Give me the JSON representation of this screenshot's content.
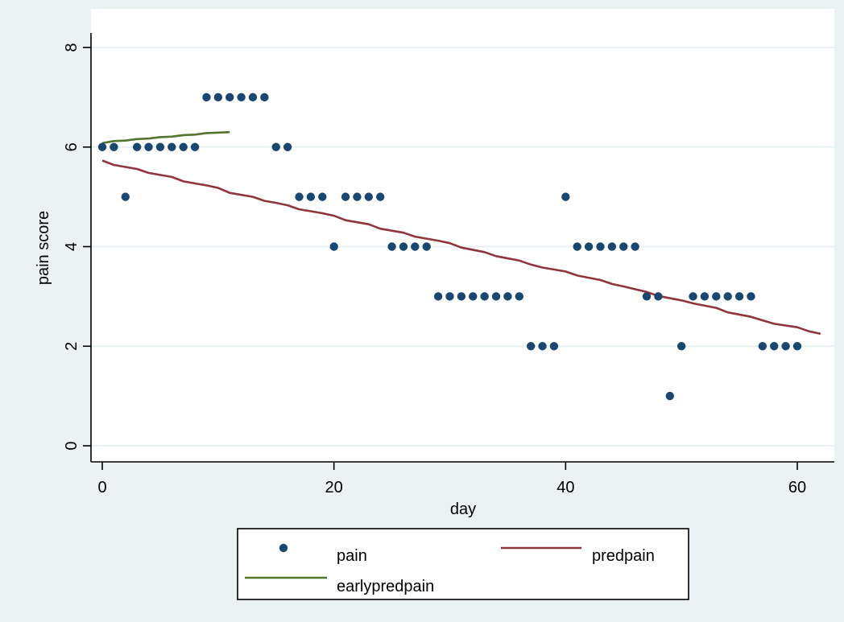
{
  "chart_data": {
    "type": "scatter",
    "xlabel": "day",
    "ylabel": "pain score",
    "xlim": [
      -1.5,
      63.5
    ],
    "ylim": [
      -0.3,
      8.3
    ],
    "x_ticks": [
      0,
      20,
      40,
      60
    ],
    "y_ticks": [
      0,
      2,
      4,
      6,
      8
    ],
    "grid": "horizontal",
    "legend_placement": "bottom",
    "colors": {
      "outer_background": "#eaf2f3",
      "plot_background": "#ffffff",
      "grid": "#eaf2f3",
      "pain": "#1a476f",
      "predpain": "#90353b",
      "earlypredpain": "#55752f"
    },
    "series": [
      {
        "name": "pain",
        "mark": "point",
        "points": [
          [
            0,
            6
          ],
          [
            1,
            6
          ],
          [
            2,
            5
          ],
          [
            3,
            6
          ],
          [
            4,
            6
          ],
          [
            5,
            6
          ],
          [
            6,
            6
          ],
          [
            7,
            6
          ],
          [
            8,
            6
          ],
          [
            9,
            7
          ],
          [
            10,
            7
          ],
          [
            11,
            7
          ],
          [
            12,
            7
          ],
          [
            13,
            7
          ],
          [
            14,
            7
          ],
          [
            15,
            6
          ],
          [
            16,
            6
          ],
          [
            17,
            5
          ],
          [
            18,
            5
          ],
          [
            19,
            5
          ],
          [
            20,
            4
          ],
          [
            21,
            5
          ],
          [
            22,
            5
          ],
          [
            23,
            5
          ],
          [
            24,
            5
          ],
          [
            25,
            4
          ],
          [
            26,
            4
          ],
          [
            27,
            4
          ],
          [
            28,
            4
          ],
          [
            29,
            3
          ],
          [
            30,
            3
          ],
          [
            31,
            3
          ],
          [
            32,
            3
          ],
          [
            33,
            3
          ],
          [
            34,
            3
          ],
          [
            35,
            3
          ],
          [
            36,
            3
          ],
          [
            37,
            2
          ],
          [
            38,
            2
          ],
          [
            39,
            2
          ],
          [
            40,
            5
          ],
          [
            41,
            4
          ],
          [
            42,
            4
          ],
          [
            43,
            4
          ],
          [
            44,
            4
          ],
          [
            45,
            4
          ],
          [
            46,
            4
          ],
          [
            47,
            3
          ],
          [
            48,
            3
          ],
          [
            49,
            1
          ],
          [
            50,
            2
          ],
          [
            51,
            3
          ],
          [
            52,
            3
          ],
          [
            53,
            3
          ],
          [
            54,
            3
          ],
          [
            55,
            3
          ],
          [
            56,
            3
          ],
          [
            57,
            2
          ],
          [
            58,
            2
          ],
          [
            59,
            2
          ],
          [
            60,
            2
          ]
        ]
      },
      {
        "name": "predpain",
        "mark": "line",
        "points": [
          [
            0,
            5.73
          ],
          [
            1,
            5.64
          ],
          [
            3,
            5.56
          ],
          [
            4,
            5.48
          ],
          [
            6,
            5.4
          ],
          [
            7,
            5.31
          ],
          [
            9,
            5.23
          ],
          [
            10,
            5.18
          ],
          [
            11,
            5.08
          ],
          [
            13,
            5.0
          ],
          [
            14,
            4.92
          ],
          [
            15,
            4.88
          ],
          [
            16,
            4.83
          ],
          [
            17,
            4.75
          ],
          [
            19,
            4.67
          ],
          [
            20,
            4.62
          ],
          [
            21,
            4.53
          ],
          [
            23,
            4.45
          ],
          [
            24,
            4.36
          ],
          [
            26,
            4.28
          ],
          [
            27,
            4.2
          ],
          [
            29,
            4.12
          ],
          [
            30,
            4.07
          ],
          [
            31,
            3.98
          ],
          [
            33,
            3.89
          ],
          [
            34,
            3.81
          ],
          [
            36,
            3.72
          ],
          [
            37,
            3.64
          ],
          [
            38,
            3.58
          ],
          [
            40,
            3.5
          ],
          [
            41,
            3.42
          ],
          [
            43,
            3.33
          ],
          [
            44,
            3.25
          ],
          [
            45,
            3.2
          ],
          [
            47,
            3.09
          ],
          [
            48,
            3.01
          ],
          [
            50,
            2.92
          ],
          [
            51,
            2.86
          ],
          [
            53,
            2.77
          ],
          [
            54,
            2.68
          ],
          [
            56,
            2.59
          ],
          [
            57,
            2.52
          ],
          [
            58,
            2.45
          ],
          [
            60,
            2.38
          ],
          [
            61,
            2.3
          ],
          [
            62,
            2.25
          ]
        ]
      },
      {
        "name": "earlypredpain",
        "mark": "line",
        "points": [
          [
            0,
            6.08
          ],
          [
            1,
            6.12
          ],
          [
            2,
            6.13
          ],
          [
            3,
            6.16
          ],
          [
            4,
            6.17
          ],
          [
            5,
            6.2
          ],
          [
            6,
            6.21
          ],
          [
            7,
            6.24
          ],
          [
            8,
            6.25
          ],
          [
            9,
            6.28
          ],
          [
            10,
            6.29
          ],
          [
            11,
            6.3
          ]
        ]
      }
    ]
  }
}
